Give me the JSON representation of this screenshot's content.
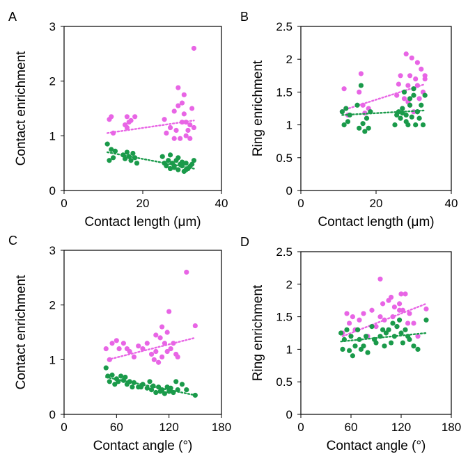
{
  "colors": {
    "magenta": "#e865e5",
    "green": "#1a9a4a",
    "axis": "#000000"
  },
  "chart_data": [
    {
      "panel": "A",
      "type": "scatter",
      "xlabel": "Contact length (μm)",
      "ylabel": "Contact enrichment",
      "xlim": [
        0,
        40
      ],
      "ylim": [
        0,
        3
      ],
      "xticks": [
        0,
        20,
        40
      ],
      "yticks": [
        0,
        1,
        2,
        3
      ],
      "grid": false,
      "series": [
        {
          "color": "magenta",
          "x": [
            11.5,
            12,
            12.5,
            15.5,
            16,
            16.5,
            17,
            16,
            18,
            25.5,
            26,
            27,
            28,
            28,
            28.5,
            29,
            29.5,
            30,
            30.5,
            31,
            31.5,
            29,
            30,
            32,
            33,
            32,
            32.5,
            31,
            30.5,
            33
          ],
          "y": [
            1.3,
            1.35,
            1.05,
            1.2,
            1.35,
            1.25,
            1.28,
            1.15,
            1.35,
            1.3,
            1.05,
            1.15,
            0.95,
            1.45,
            1.1,
            1.55,
            0.95,
            1.25,
            1.4,
            1.0,
            1.1,
            1.88,
            1.6,
            1.2,
            2.6,
            0.95,
            1.5,
            1.25,
            1.75,
            1.15
          ],
          "trend": [
            [
              11,
              1.05
            ],
            [
              33,
              1.28
            ]
          ]
        },
        {
          "color": "green",
          "x": [
            11,
            11.5,
            12,
            12.5,
            13,
            15,
            15.5,
            16,
            16.5,
            17,
            17.5,
            18,
            18.5,
            25,
            25.5,
            26,
            26.5,
            27,
            27.5,
            28,
            28.5,
            29,
            29.5,
            30,
            30.5,
            31,
            31.5,
            32,
            33,
            32.5,
            29,
            30,
            28,
            31,
            27
          ],
          "y": [
            0.85,
            0.55,
            0.75,
            0.6,
            0.72,
            0.65,
            0.58,
            0.7,
            0.62,
            0.55,
            0.68,
            0.6,
            0.5,
            0.62,
            0.5,
            0.45,
            0.55,
            0.4,
            0.5,
            0.42,
            0.55,
            0.38,
            0.48,
            0.45,
            0.35,
            0.5,
            0.4,
            0.44,
            0.55,
            0.48,
            0.6,
            0.52,
            0.45,
            0.38,
            0.65
          ],
          "trend": [
            [
              11,
              0.7
            ],
            [
              33,
              0.4
            ]
          ]
        }
      ]
    },
    {
      "panel": "B",
      "type": "scatter",
      "xlabel": "Contact length (μm)",
      "ylabel": "Ring enrichment",
      "xlim": [
        0,
        40
      ],
      "ylim": [
        0,
        2.5
      ],
      "xticks": [
        0,
        20,
        40
      ],
      "yticks": [
        0,
        0.5,
        1,
        1.5,
        2,
        2.5
      ],
      "grid": false,
      "series": [
        {
          "color": "magenta",
          "x": [
            11,
            11.5,
            12,
            12.5,
            15.5,
            16,
            16.5,
            17,
            18,
            25.5,
            26,
            26.5,
            27,
            27.5,
            28,
            28.5,
            29,
            29.5,
            30,
            30.5,
            31,
            31.5,
            32,
            33,
            32.5,
            30,
            29,
            28.5,
            31,
            33
          ],
          "y": [
            1.2,
            1.55,
            1.25,
            1.15,
            1.5,
            1.78,
            1.3,
            1.18,
            1.25,
            1.45,
            1.62,
            1.75,
            1.25,
            1.4,
            2.08,
            1.6,
            1.3,
            2.02,
            1.55,
            1.7,
            1.95,
            1.4,
            1.85,
            1.7,
            1.5,
            1.2,
            1.75,
            1.35,
            1.6,
            1.75
          ],
          "trend": [
            [
              11,
              1.22
            ],
            [
              33,
              1.62
            ]
          ]
        },
        {
          "color": "green",
          "x": [
            11,
            11.5,
            12,
            12.5,
            13,
            15,
            15.5,
            16,
            16.5,
            17,
            17.5,
            18,
            18.5,
            25,
            25.5,
            26,
            26.5,
            27,
            27.5,
            28,
            28.5,
            29,
            29.5,
            30,
            30.5,
            31,
            31.5,
            32,
            33,
            32.5,
            28,
            30,
            27,
            29,
            31
          ],
          "y": [
            1.2,
            1.0,
            1.25,
            1.05,
            1.15,
            1.3,
            0.95,
            1.6,
            1.02,
            0.9,
            1.1,
            0.95,
            1.2,
            1.0,
            1.15,
            1.2,
            1.1,
            1.25,
            1.5,
            1.15,
            1.0,
            1.3,
            1.12,
            1.45,
            1.0,
            1.2,
            1.1,
            1.3,
            1.45,
            1.0,
            1.05,
            1.55,
            1.18,
            1.4,
            1.2
          ],
          "trend": [
            [
              11,
              1.15
            ],
            [
              33,
              1.22
            ]
          ]
        }
      ]
    },
    {
      "panel": "C",
      "type": "scatter",
      "xlabel": "Contact angle (°)",
      "ylabel": "Contact enrichment",
      "xlim": [
        0,
        180
      ],
      "ylim": [
        0,
        3
      ],
      "xticks": [
        0,
        60,
        120,
        180
      ],
      "yticks": [
        0,
        1,
        2,
        3
      ],
      "grid": false,
      "series": [
        {
          "color": "magenta",
          "x": [
            48,
            52,
            55,
            60,
            63,
            68,
            72,
            75,
            80,
            85,
            90,
            95,
            100,
            103,
            105,
            108,
            110,
            112,
            115,
            118,
            120,
            122,
            125,
            128,
            130,
            105,
            112,
            118,
            140,
            150
          ],
          "y": [
            1.2,
            1.0,
            1.3,
            1.35,
            1.2,
            1.3,
            1.2,
            1.15,
            1.05,
            1.25,
            1.2,
            1.3,
            1.1,
            1.0,
            1.15,
            0.95,
            1.4,
            1.05,
            1.3,
            1.5,
            1.88,
            1.2,
            1.3,
            1.1,
            1.05,
            1.45,
            1.6,
            1.15,
            2.6,
            1.62
          ],
          "trend": [
            [
              50,
              1.0
            ],
            [
              150,
              1.4
            ]
          ]
        },
        {
          "color": "green",
          "x": [
            48,
            50,
            52,
            55,
            58,
            60,
            62,
            65,
            68,
            70,
            72,
            75,
            78,
            80,
            85,
            90,
            95,
            100,
            102,
            105,
            108,
            110,
            112,
            115,
            118,
            120,
            122,
            125,
            130,
            135,
            140,
            150,
            98,
            88,
            128
          ],
          "y": [
            0.85,
            0.7,
            0.6,
            0.72,
            0.55,
            0.65,
            0.6,
            0.7,
            0.62,
            0.68,
            0.55,
            0.6,
            0.5,
            0.58,
            0.5,
            0.55,
            0.48,
            0.45,
            0.52,
            0.4,
            0.5,
            0.42,
            0.45,
            0.38,
            0.5,
            0.42,
            0.48,
            0.4,
            0.45,
            0.55,
            0.45,
            0.35,
            0.6,
            0.5,
            0.6
          ],
          "trend": [
            [
              48,
              0.68
            ],
            [
              150,
              0.35
            ]
          ]
        }
      ]
    },
    {
      "panel": "D",
      "type": "scatter",
      "xlabel": "Contact angle (°)",
      "ylabel": "Ring enrichment",
      "xlim": [
        0,
        180
      ],
      "ylim": [
        0,
        2.5
      ],
      "xticks": [
        0,
        60,
        120,
        180
      ],
      "yticks": [
        0,
        0.5,
        1,
        1.5,
        2,
        2.5
      ],
      "grid": false,
      "series": [
        {
          "color": "magenta",
          "x": [
            50,
            55,
            58,
            62,
            65,
            70,
            75,
            80,
            85,
            90,
            95,
            98,
            100,
            105,
            108,
            110,
            112,
            115,
            118,
            120,
            122,
            125,
            128,
            130,
            135,
            140,
            150,
            95,
            105,
            118
          ],
          "y": [
            1.25,
            1.55,
            1.4,
            1.5,
            1.3,
            1.45,
            1.55,
            1.2,
            1.6,
            1.35,
            2.08,
            1.7,
            1.45,
            1.75,
            1.8,
            1.5,
            1.65,
            1.35,
            1.7,
            1.85,
            1.6,
            1.85,
            1.4,
            1.55,
            1.4,
            1.2,
            1.62,
            1.5,
            1.3,
            1.6
          ],
          "trend": [
            [
              50,
              1.2
            ],
            [
              150,
              1.7
            ]
          ]
        },
        {
          "color": "green",
          "x": [
            48,
            50,
            52,
            55,
            58,
            60,
            62,
            65,
            68,
            70,
            72,
            75,
            78,
            80,
            85,
            90,
            95,
            100,
            102,
            105,
            108,
            110,
            112,
            115,
            118,
            120,
            122,
            125,
            130,
            135,
            140,
            150,
            98,
            88,
            128
          ],
          "y": [
            1.25,
            1.0,
            1.15,
            1.3,
            0.98,
            1.2,
            0.9,
            1.05,
            1.3,
            1.15,
            1.0,
            1.05,
            1.2,
            0.95,
            1.35,
            1.1,
            1.2,
            1.05,
            1.25,
            1.3,
            1.1,
            1.4,
            1.2,
            1.35,
            1.45,
            1.25,
            1.1,
            1.3,
            1.15,
            1.05,
            1.0,
            1.45,
            1.3,
            1.15,
            1.2
          ],
          "trend": [
            [
              48,
              1.12
            ],
            [
              150,
              1.25
            ]
          ]
        }
      ]
    }
  ]
}
